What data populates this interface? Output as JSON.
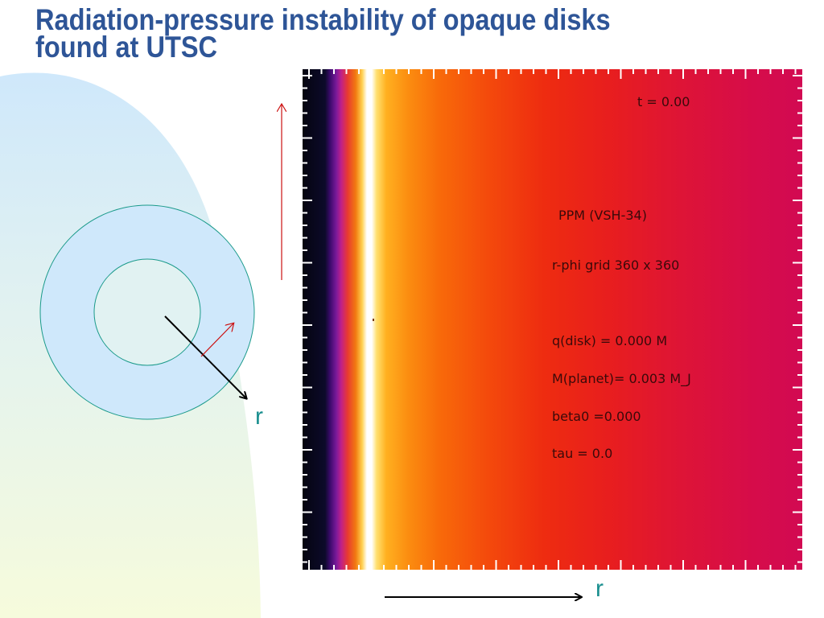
{
  "slide": {
    "title_line1": "Radiation-pressure  instability of opaque disks",
    "title_line2": "found at UTSC"
  },
  "diagram": {
    "radial_label": "r"
  },
  "plot": {
    "time_label": "t =  0.00",
    "method": "PPM (VSH-34)",
    "grid": "r-phi grid 360 x 360",
    "q_disk": "q(disk) = 0.000 M",
    "m_planet": "M(planet)=  0.003 M_J",
    "beta0": "beta0 =0.000",
    "tau": "tau =  0.0"
  },
  "axis": {
    "radial_label": "r"
  },
  "colors": {
    "title": "#2e5597",
    "background_shape": "#cfe8fb",
    "ring_outline": "#1a9a8a",
    "arrow_red": "#cc1111",
    "label_teal": "#1a8f8f"
  }
}
